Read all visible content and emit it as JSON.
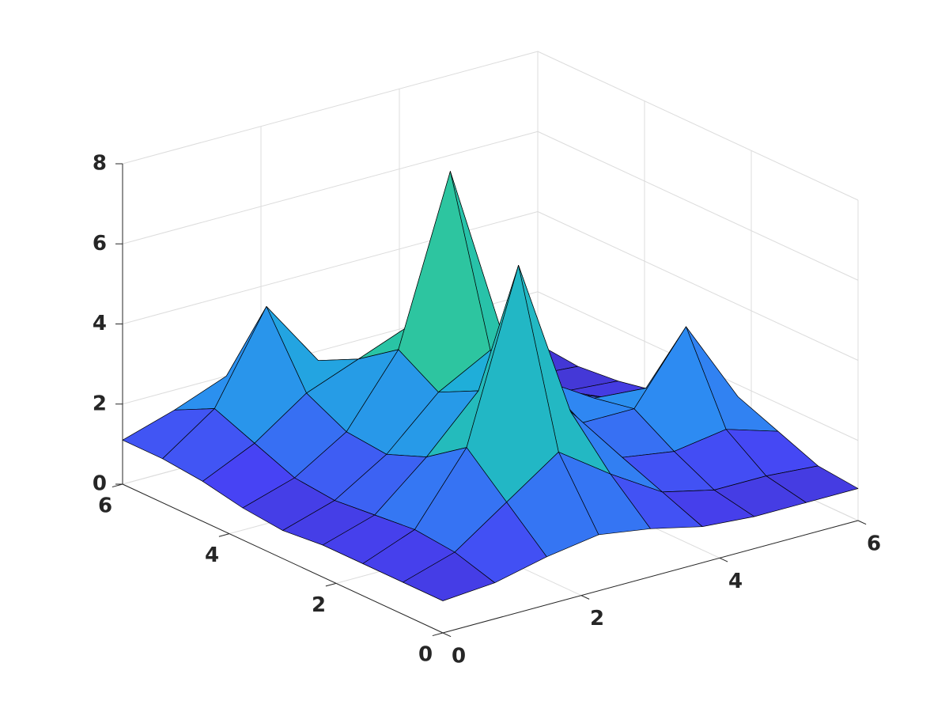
{
  "chart_data": {
    "type": "surface",
    "x": [
      0,
      0.75,
      1.5,
      2.25,
      3,
      3.75,
      4.5,
      5.25,
      6
    ],
    "y": [
      0,
      0.75,
      1.5,
      2.25,
      3,
      3.75,
      4.5,
      5.25,
      6
    ],
    "z": [
      [
        0.8,
        0.9,
        1.2,
        1.4,
        1.2,
        0.9,
        0.8,
        0.8,
        0.8
      ],
      [
        0.8,
        1.2,
        2.1,
        3.0,
        2.1,
        1.3,
        1.0,
        1.0,
        0.9
      ],
      [
        0.8,
        1.3,
        3.0,
        7.2,
        3.2,
        1.7,
        1.5,
        1.7,
        1.3
      ],
      [
        0.8,
        1.2,
        2.3,
        3.6,
        3.0,
        2.1,
        2.1,
        3.8,
        1.7
      ],
      [
        0.7,
        1.1,
        1.9,
        3.1,
        3.8,
        2.7,
        1.9,
        1.8,
        1.3
      ],
      [
        0.8,
        1.2,
        2.0,
        3.7,
        7.8,
        3.4,
        1.6,
        1.1,
        0.9
      ],
      [
        1.0,
        1.6,
        2.5,
        3.0,
        3.5,
        2.3,
        1.2,
        0.8,
        0.7
      ],
      [
        1.1,
        2.0,
        4.2,
        2.5,
        1.8,
        1.3,
        0.9,
        0.7,
        0.6
      ],
      [
        1.1,
        1.5,
        2.0,
        1.6,
        1.2,
        0.9,
        0.7,
        0.7,
        0.7
      ]
    ],
    "xlim": [
      0,
      6
    ],
    "ylim": [
      0,
      6
    ],
    "zlim": [
      0,
      8
    ],
    "xticks": [
      0,
      2,
      4,
      6
    ],
    "yticks": [
      0,
      2,
      4,
      6
    ],
    "zticks": [
      0,
      2,
      4,
      6,
      8
    ],
    "grid": true,
    "edge_color": "#000000",
    "colormap": [
      "#3e26a8",
      "#4743f4",
      "#2d8cf2",
      "#1eb0d8",
      "#2ac5a2",
      "#a4be56",
      "#f4ba3c",
      "#f9fb15"
    ]
  }
}
